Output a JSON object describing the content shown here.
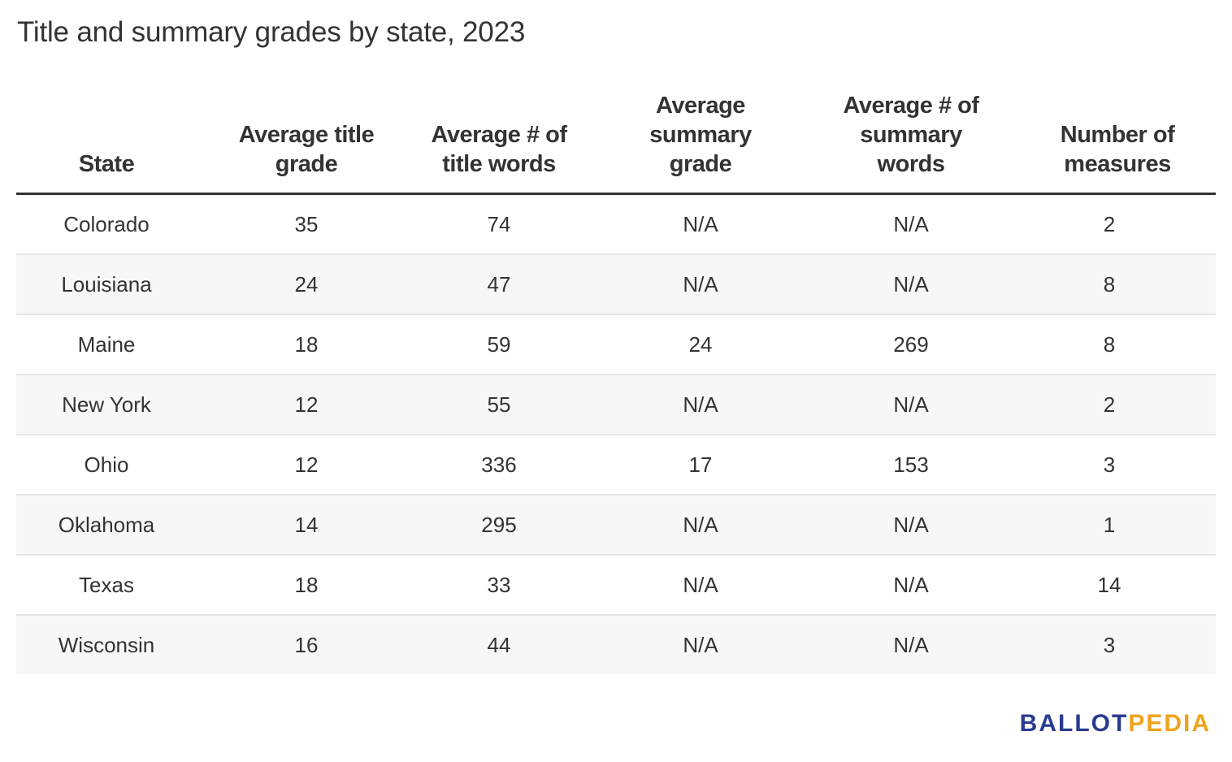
{
  "title": "Title and summary grades by state, 2023",
  "logo": {
    "part1": "BALLOT",
    "part2": "PEDIA",
    "color1": "#2a3c8f",
    "color2": "#f0a31c"
  },
  "chart_data": {
    "type": "table",
    "title": "Title and summary grades by state, 2023",
    "columns": [
      "State",
      "Average title grade",
      "Average # of title words",
      "Average summary grade",
      "Average # of summary words",
      "Number of measures"
    ],
    "rows": [
      [
        "Colorado",
        "35",
        "74",
        "N/A",
        "N/A",
        "2"
      ],
      [
        "Louisiana",
        "24",
        "47",
        "N/A",
        "N/A",
        "8"
      ],
      [
        "Maine",
        "18",
        "59",
        "24",
        "269",
        "8"
      ],
      [
        "New York",
        "12",
        "55",
        "N/A",
        "N/A",
        "2"
      ],
      [
        "Ohio",
        "12",
        "336",
        "17",
        "153",
        "3"
      ],
      [
        "Oklahoma",
        "14",
        "295",
        "N/A",
        "N/A",
        "1"
      ],
      [
        "Texas",
        "18",
        "33",
        "N/A",
        "N/A",
        "14"
      ],
      [
        "Wisconsin",
        "16",
        "44",
        "N/A",
        "N/A",
        "3"
      ]
    ]
  }
}
